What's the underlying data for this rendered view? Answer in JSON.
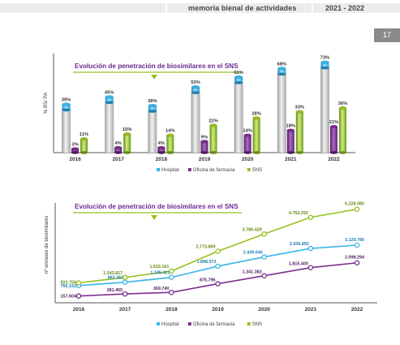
{
  "header": {
    "doc_title": "memoria bienal de actividades",
    "years": "2021 - 2022",
    "page_number": "17"
  },
  "colors": {
    "hospital": "#38b4e8",
    "farmacia": "#7b2d8e",
    "sns": "#95c11f",
    "title_text": "#6a2c8e",
    "title_line": "#95c11f"
  },
  "chart_data": [
    {
      "type": "bar",
      "title": "Evolución de penetración de biosimilares en el SNS",
      "ylabel": "% BS/ PA",
      "xlabel": "",
      "categories": [
        "2016",
        "2017",
        "2018",
        "2019",
        "2020",
        "2021",
        "2022"
      ],
      "ylim": [
        0,
        80
      ],
      "series": [
        {
          "name": "Hospital",
          "values": [
            39,
            45,
            38,
            53,
            61,
            68,
            73
          ],
          "labels": [
            "39%",
            "45%",
            "38%",
            "53%",
            "61%",
            "68%",
            "73%"
          ]
        },
        {
          "name": "Oficina de farmacia",
          "values": [
            3,
            4,
            4,
            9,
            14,
            18,
            21
          ],
          "labels": [
            "3%",
            "4%",
            "4%",
            "9%",
            "14%",
            "18%",
            "21%"
          ]
        },
        {
          "name": "SNS",
          "values": [
            11,
            15,
            14,
            22,
            28,
            33,
            36
          ],
          "labels": [
            "11%",
            "15%",
            "14%",
            "22%",
            "28%",
            "33%",
            "36%"
          ]
        }
      ],
      "legend": "bottom"
    },
    {
      "type": "line",
      "title": "Evolución de penetración de biosimilares en el SNS",
      "ylabel": "nº envases de biosimilares",
      "xlabel": "",
      "x": [
        "2016",
        "2017",
        "2018",
        "2019",
        "2020",
        "2021",
        "2022"
      ],
      "ylim": [
        0,
        5500000
      ],
      "series": [
        {
          "name": "Hospital",
          "values": [
            766152,
            962362,
            1245421,
            1898073,
            2439046,
            2936892,
            3129786
          ],
          "labels": [
            "766.152",
            "962.362",
            "1.245.421",
            "1.898.073",
            "2.439.046",
            "2.936.892",
            "3.129.786"
          ]
        },
        {
          "name": "Oficina de farmacia",
          "values": [
            157604,
            281455,
            369740,
            875796,
            1341383,
            1815400,
            2098294
          ],
          "labels": [
            "157.604",
            "281.455",
            "369.740",
            "875.796",
            "1.341.383",
            "1.815.400",
            "2.098.294"
          ]
        },
        {
          "name": "SNS",
          "values": [
            923756,
            1243817,
            1615161,
            2773869,
            3780429,
            4752292,
            5228080
          ],
          "labels": [
            "923.756",
            "1.243.817",
            "1.615.161",
            "2.773.869",
            "3.780.429",
            "4.752.292",
            "5.228.080"
          ]
        }
      ],
      "legend": "bottom"
    }
  ]
}
